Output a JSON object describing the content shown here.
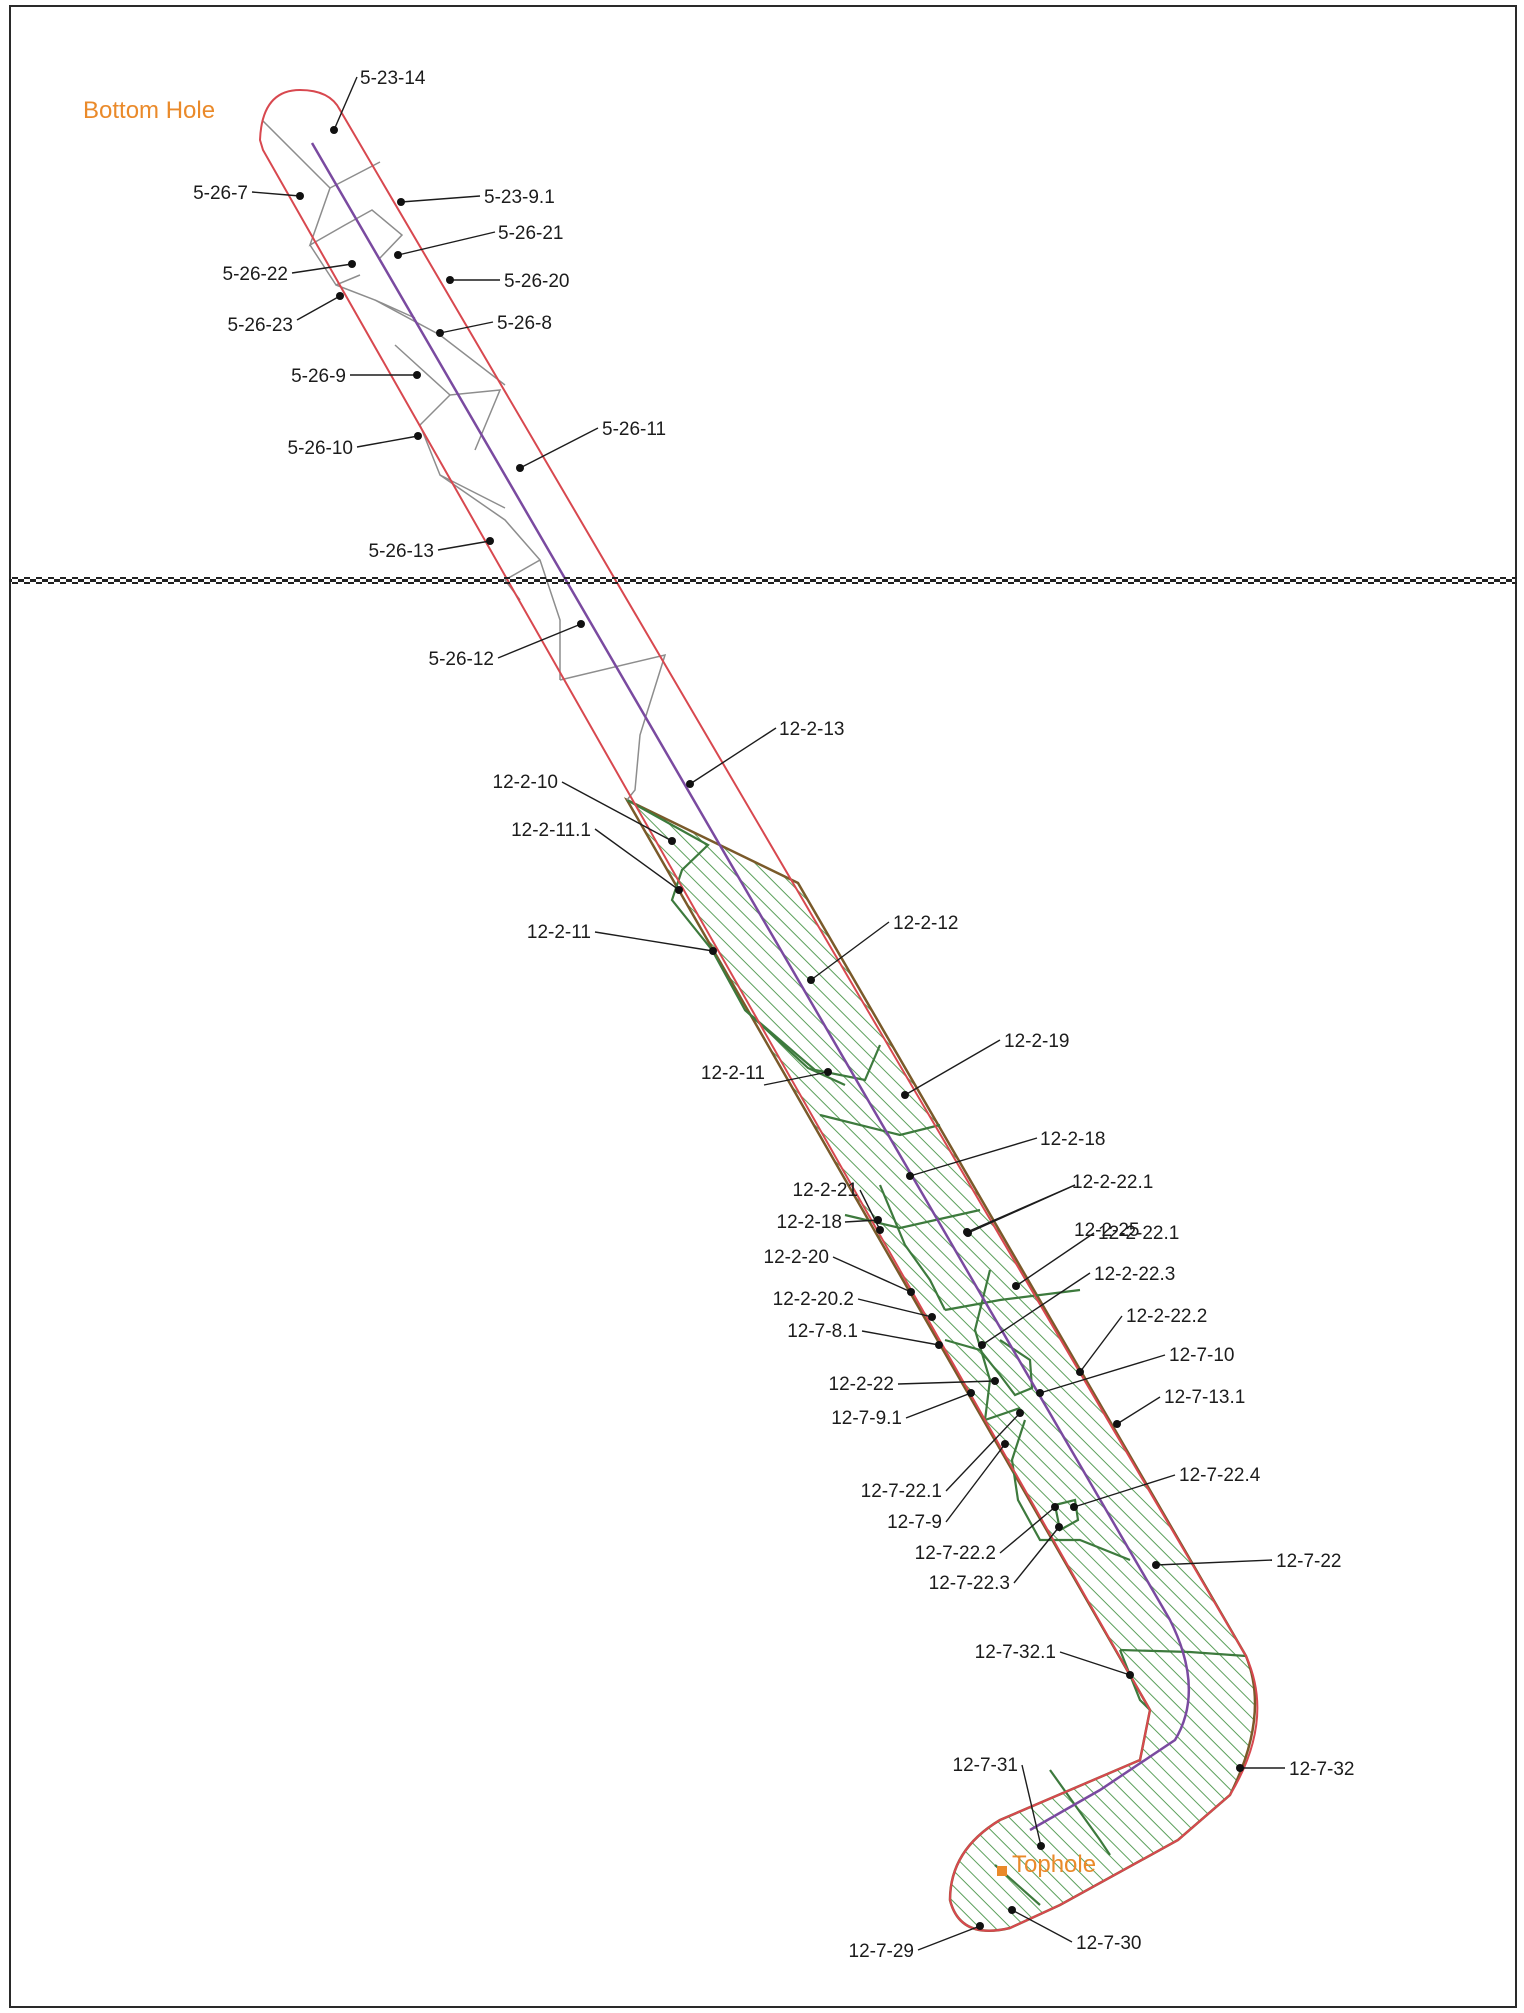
{
  "colors": {
    "corridor": "#d8484f",
    "parcel_grey": "#8d8d8d",
    "parcel_green": "#3d7a3d",
    "hatch_green": "#5ca05c",
    "centerline": "#7a4aa0",
    "boundary": "#1e1e1e",
    "callout_text": "#1c1c1c",
    "key_points": "#ea8a2a"
  },
  "key_points": {
    "bottom_hole": "Bottom Hole",
    "top_hole": "Tophole"
  },
  "boundary_line": {
    "style": "dashed-checkered"
  },
  "parcels": {
    "above_boundary": [
      "5-23-14",
      "5-26-7",
      "5-23-9.1",
      "5-26-21",
      "5-26-22",
      "5-26-20",
      "5-26-23",
      "5-26-8",
      "5-26-9",
      "5-26-11",
      "5-26-10",
      "5-26-13"
    ],
    "below_boundary": [
      "5-26-12",
      "12-2-13",
      "12-2-10",
      "12-2-11.1",
      "12-2-12",
      "12-2-11",
      "12-2-19",
      "12-2-11",
      "12-2-18",
      "12-2-21",
      "12-2-25",
      "12-2-22.1",
      "12-2-18",
      "12-2-22.3",
      "12-2-20",
      "12-2-22.2",
      "12-2-20.2",
      "12-7-10",
      "12-7-8.1",
      "12-2-22",
      "12-7-13.1",
      "12-7-9.1",
      "12-7-22.4",
      "12-7-22.1",
      "12-7-9",
      "12-7-22.2",
      "12-7-22",
      "12-7-22.3",
      "12-7-32.1",
      "12-7-31",
      "12-7-32",
      "12-7-29",
      "12-7-30"
    ]
  }
}
